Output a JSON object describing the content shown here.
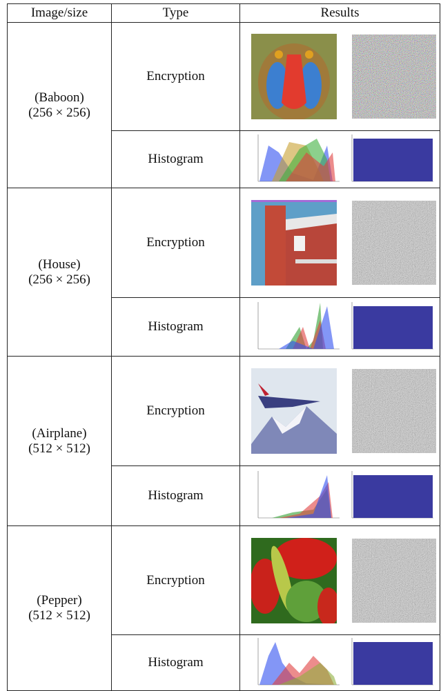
{
  "table": {
    "header": [
      "Image/size",
      "Type",
      "Results"
    ],
    "rows": [
      {
        "image": "(Baboon)",
        "size": "(256 × 256)",
        "types": [
          "Encryption",
          "Histogram"
        ]
      },
      {
        "image": "(House)",
        "size": "(256 × 256)",
        "types": [
          "Encryption",
          "Histogram"
        ]
      },
      {
        "image": "(Airplane)",
        "size": "(512 × 512)",
        "types": [
          "Encryption",
          "Histogram"
        ]
      },
      {
        "image": "(Pepper)",
        "size": "(512 × 512)",
        "types": [
          "Encryption",
          "Histogram"
        ]
      }
    ]
  }
}
